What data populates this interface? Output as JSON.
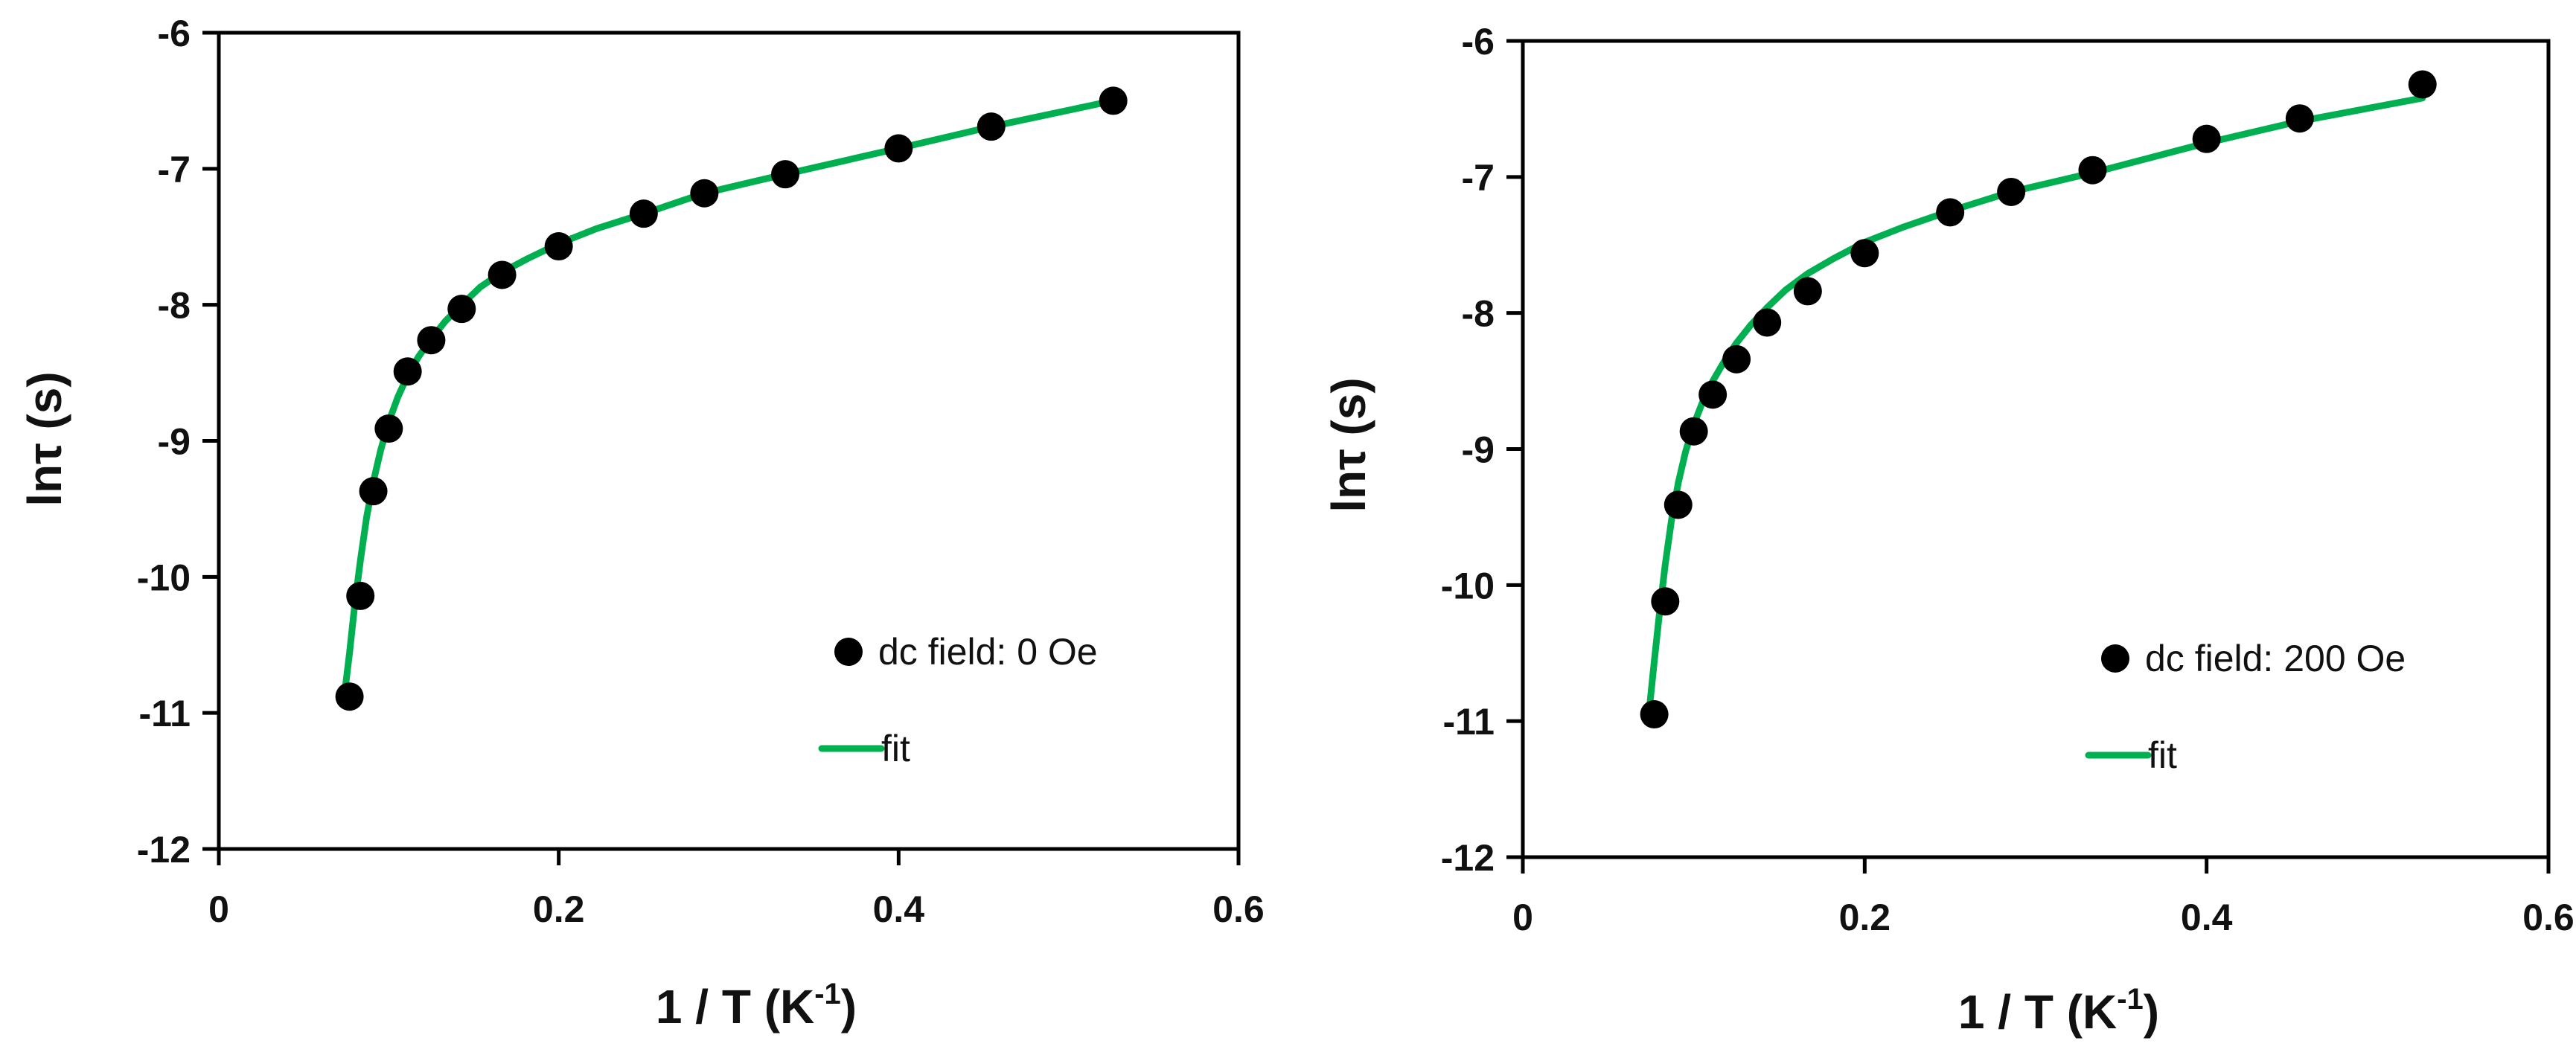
{
  "chart_data": [
    {
      "type": "scatter",
      "title": "",
      "xlabel": "1 / T (K",
      "xlabel_sup": "-1",
      "xlabel_suffix": ")",
      "ylabel": "lnτ (s)",
      "xlim": [
        0,
        0.6
      ],
      "ylim": [
        -12,
        -6
      ],
      "xticks": [
        0,
        0.2,
        0.4,
        0.6
      ],
      "xtick_labels": [
        "0",
        "0.2",
        "0.4",
        "0.6"
      ],
      "yticks": [
        -12,
        -11,
        -10,
        -9,
        -8,
        -7,
        -6
      ],
      "ytick_labels": [
        "-12",
        "-11",
        "-10",
        "-9",
        "-8",
        "-7",
        "-6"
      ],
      "grid": false,
      "legend_position": "bottom-right",
      "series": [
        {
          "name": "dc field: 0 Oe",
          "kind": "scatter",
          "color": "#000000",
          "x": [
            0.0769,
            0.0833,
            0.0909,
            0.1,
            0.1111,
            0.125,
            0.1429,
            0.1667,
            0.2,
            0.25,
            0.2857,
            0.3333,
            0.4,
            0.4545,
            0.5263
          ],
          "y": [
            -10.88,
            -10.14,
            -9.37,
            -8.91,
            -8.49,
            -8.26,
            -8.03,
            -7.78,
            -7.57,
            -7.33,
            -7.18,
            -7.04,
            -6.85,
            -6.69,
            -6.5
          ]
        },
        {
          "name": "fit",
          "kind": "line",
          "color": "#00b050",
          "x": [
            0.0741,
            0.077,
            0.08,
            0.0833,
            0.087,
            0.0909,
            0.0952,
            0.1,
            0.1053,
            0.1111,
            0.1176,
            0.125,
            0.1333,
            0.1429,
            0.1538,
            0.1667,
            0.1818,
            0.2,
            0.2222,
            0.25,
            0.2857,
            0.3333,
            0.4,
            0.4545,
            0.5263
          ],
          "y": [
            -10.85,
            -10.55,
            -10.2,
            -9.88,
            -9.56,
            -9.3,
            -9.07,
            -8.86,
            -8.68,
            -8.52,
            -8.38,
            -8.25,
            -8.12,
            -8.0,
            -7.87,
            -7.76,
            -7.66,
            -7.55,
            -7.44,
            -7.33,
            -7.18,
            -7.04,
            -6.85,
            -6.69,
            -6.5
          ]
        }
      ]
    },
    {
      "type": "scatter",
      "title": "",
      "xlabel": "1 / T (K",
      "xlabel_sup": "-1",
      "xlabel_suffix": ")",
      "ylabel": "lnτ (s)",
      "xlim": [
        0,
        0.6
      ],
      "ylim": [
        -12,
        -6
      ],
      "xticks": [
        0,
        0.2,
        0.4,
        0.6
      ],
      "xtick_labels": [
        "0",
        "0.2",
        "0.4",
        "0.6"
      ],
      "yticks": [
        -12,
        -11,
        -10,
        -9,
        -8,
        -7,
        -6
      ],
      "ytick_labels": [
        "-12",
        "-11",
        "-10",
        "-9",
        "-8",
        "-7",
        "-6"
      ],
      "grid": false,
      "legend_position": "bottom-right",
      "series": [
        {
          "name": "dc field: 200 Oe",
          "kind": "scatter",
          "color": "#000000",
          "x": [
            0.0769,
            0.0833,
            0.0909,
            0.1,
            0.1111,
            0.125,
            0.1429,
            0.1667,
            0.2,
            0.25,
            0.2857,
            0.3333,
            0.4,
            0.4545,
            0.5263
          ],
          "y": [
            -10.95,
            -10.12,
            -9.41,
            -8.87,
            -8.6,
            -8.34,
            -8.07,
            -7.84,
            -7.56,
            -7.26,
            -7.11,
            -6.95,
            -6.72,
            -6.57,
            -6.32
          ]
        },
        {
          "name": "fit",
          "kind": "line",
          "color": "#00b050",
          "x": [
            0.0741,
            0.077,
            0.08,
            0.0833,
            0.087,
            0.0909,
            0.0952,
            0.1,
            0.1053,
            0.1111,
            0.1176,
            0.125,
            0.1333,
            0.1429,
            0.1538,
            0.1667,
            0.1818,
            0.2,
            0.2222,
            0.25,
            0.2857,
            0.3333,
            0.4,
            0.4545,
            0.5263
          ],
          "y": [
            -10.9,
            -10.55,
            -10.2,
            -9.85,
            -9.52,
            -9.25,
            -9.02,
            -8.82,
            -8.65,
            -8.5,
            -8.36,
            -8.22,
            -8.09,
            -7.96,
            -7.83,
            -7.71,
            -7.6,
            -7.48,
            -7.37,
            -7.25,
            -7.11,
            -6.97,
            -6.75,
            -6.59,
            -6.42
          ]
        }
      ]
    }
  ]
}
